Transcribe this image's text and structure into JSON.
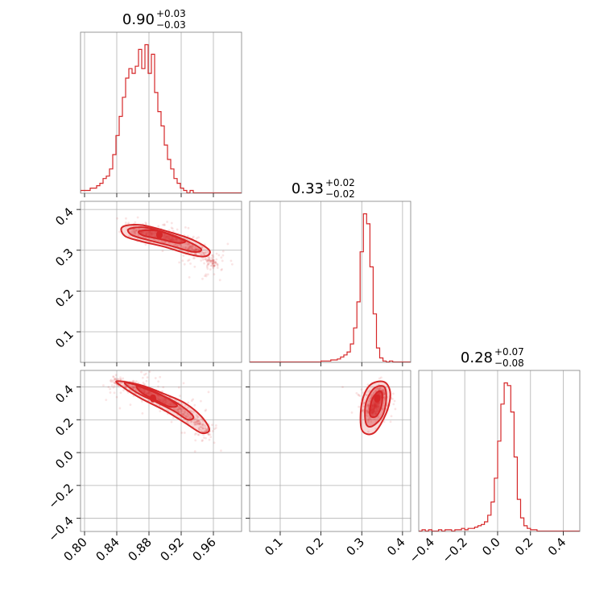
{
  "chart_data": {
    "type": "corner",
    "color": "#d62728",
    "parameters": [
      {
        "median": 0.9,
        "plus": 0.03,
        "minus": 0.03,
        "range": [
          0.795,
          0.995
        ],
        "ticks": [
          0.8,
          0.84,
          0.88,
          0.92,
          0.96
        ],
        "tick_labels": [
          "0.80",
          "0.84",
          "0.88",
          "0.92",
          "0.96"
        ]
      },
      {
        "median": 0.33,
        "plus": 0.02,
        "minus": 0.02,
        "range": [
          0.025,
          0.42
        ],
        "ticks": [
          0.1,
          0.2,
          0.3,
          0.4
        ],
        "tick_labels": [
          "0.1",
          "0.2",
          "0.3",
          "0.4"
        ]
      },
      {
        "median": 0.28,
        "plus": 0.07,
        "minus": 0.08,
        "range": [
          -0.48,
          0.5
        ],
        "ticks": [
          -0.4,
          -0.2,
          0.0,
          0.2,
          0.4
        ],
        "tick_labels": [
          "−0.4",
          "−0.2",
          "0.0",
          "0.2",
          "0.4"
        ]
      }
    ],
    "titles": [
      {
        "main": "0.90",
        "sup": "+0.03",
        "sub": "−0.03"
      },
      {
        "main": "0.33",
        "sup": "+0.02",
        "sub": "−0.02"
      },
      {
        "main": "0.28",
        "sup": "+0.07",
        "sub": "−0.08"
      }
    ],
    "y_tick_labels_row1": [
      "0.1",
      "0.2",
      "0.3",
      "0.4"
    ],
    "y_ticks_row1": [
      0.1,
      0.2,
      0.3,
      0.4
    ],
    "y_tick_labels_row2": [
      "−0.4",
      "−0.2",
      "0.0",
      "0.2",
      "0.4"
    ],
    "y_ticks_row2": [
      -0.4,
      -0.2,
      0.0,
      0.2,
      0.4
    ],
    "histograms": [
      {
        "param": 0,
        "edges_start": 0.795,
        "bin_width": 0.004,
        "counts": [
          1,
          1,
          1,
          2,
          2,
          3,
          4,
          6,
          7,
          10,
          16,
          24,
          32,
          40,
          48,
          52,
          50,
          53,
          60,
          52,
          62,
          50,
          58,
          42,
          34,
          28,
          20,
          14,
          10,
          6,
          4,
          2,
          1,
          0,
          1
        ]
      },
      {
        "param": 1,
        "edges_start": 0.2,
        "bin_width": 0.008,
        "counts": [
          1,
          1,
          1,
          2,
          2,
          3,
          5,
          7,
          10,
          18,
          34,
          60,
          110,
          148,
          138,
          95,
          48,
          14,
          4,
          1,
          0,
          1
        ]
      },
      {
        "param": 2,
        "edges_start": -0.48,
        "bin_width": 0.02,
        "counts": [
          0,
          1,
          0,
          1,
          0,
          0,
          1,
          0,
          1,
          1,
          0,
          1,
          1,
          2,
          1,
          2,
          2,
          3,
          4,
          5,
          7,
          12,
          22,
          40,
          68,
          96,
          112,
          110,
          90,
          56,
          24,
          10,
          4,
          2,
          1,
          1,
          0,
          0,
          0
        ]
      }
    ],
    "scatter_2d": [
      {
        "x_param": 0,
        "y_param": 1,
        "core": [
          [
            0.86,
            0.352
          ],
          [
            0.87,
            0.347
          ],
          [
            0.88,
            0.343
          ],
          [
            0.89,
            0.338
          ],
          [
            0.9,
            0.332
          ],
          [
            0.91,
            0.326
          ],
          [
            0.92,
            0.318
          ],
          [
            0.93,
            0.308
          ],
          [
            0.94,
            0.296
          ],
          [
            0.95,
            0.282
          ],
          [
            0.96,
            0.268
          ]
        ],
        "contour_levels": [
          [
            [
              0.847,
              0.357
            ],
            [
              0.87,
              0.362
            ],
            [
              0.905,
              0.345
            ],
            [
              0.935,
              0.325
            ],
            [
              0.955,
              0.3
            ],
            [
              0.95,
              0.285
            ],
            [
              0.93,
              0.29
            ],
            [
              0.9,
              0.308
            ],
            [
              0.87,
              0.322
            ],
            [
              0.85,
              0.335
            ]
          ],
          [
            [
              0.855,
              0.352
            ],
            [
              0.875,
              0.356
            ],
            [
              0.905,
              0.34
            ],
            [
              0.93,
              0.32
            ],
            [
              0.945,
              0.302
            ],
            [
              0.935,
              0.296
            ],
            [
              0.905,
              0.312
            ],
            [
              0.875,
              0.327
            ],
            [
              0.858,
              0.338
            ]
          ],
          [
            [
              0.868,
              0.347
            ],
            [
              0.89,
              0.348
            ],
            [
              0.91,
              0.335
            ],
            [
              0.925,
              0.322
            ],
            [
              0.915,
              0.318
            ],
            [
              0.895,
              0.327
            ],
            [
              0.873,
              0.336
            ]
          ]
        ],
        "peak": [
          0.893,
          0.338
        ]
      },
      {
        "x_param": 0,
        "y_param": 2,
        "core": [
          [
            0.84,
            0.43
          ],
          [
            0.85,
            0.415
          ],
          [
            0.86,
            0.4
          ],
          [
            0.87,
            0.385
          ],
          [
            0.88,
            0.36
          ],
          [
            0.89,
            0.34
          ],
          [
            0.9,
            0.315
          ],
          [
            0.91,
            0.29
          ],
          [
            0.92,
            0.26
          ],
          [
            0.93,
            0.225
          ],
          [
            0.94,
            0.185
          ],
          [
            0.95,
            0.13
          ]
        ],
        "contour_levels": [
          [
            [
              0.84,
              0.435
            ],
            [
              0.87,
              0.41
            ],
            [
              0.9,
              0.355
            ],
            [
              0.925,
              0.3
            ],
            [
              0.945,
              0.22
            ],
            [
              0.955,
              0.14
            ],
            [
              0.945,
              0.12
            ],
            [
              0.925,
              0.18
            ],
            [
              0.9,
              0.255
            ],
            [
              0.87,
              0.33
            ],
            [
              0.85,
              0.39
            ]
          ],
          [
            [
              0.85,
              0.425
            ],
            [
              0.875,
              0.395
            ],
            [
              0.9,
              0.34
            ],
            [
              0.92,
              0.285
            ],
            [
              0.935,
              0.22
            ],
            [
              0.928,
              0.2
            ],
            [
              0.912,
              0.25
            ],
            [
              0.89,
              0.305
            ],
            [
              0.865,
              0.365
            ]
          ],
          [
            [
              0.865,
              0.405
            ],
            [
              0.885,
              0.37
            ],
            [
              0.905,
              0.325
            ],
            [
              0.915,
              0.285
            ],
            [
              0.905,
              0.28
            ],
            [
              0.89,
              0.315
            ],
            [
              0.872,
              0.36
            ]
          ]
        ],
        "peak": [
          0.885,
          0.33
        ]
      },
      {
        "x_param": 1,
        "y_param": 2,
        "core": [
          [
            0.325,
            0.25
          ],
          [
            0.33,
            0.28
          ],
          [
            0.335,
            0.31
          ],
          [
            0.34,
            0.34
          ],
          [
            0.345,
            0.36
          ]
        ],
        "contour_levels": [
          [
            [
              0.3,
              0.14
            ],
            [
              0.3,
              0.3
            ],
            [
              0.32,
              0.41
            ],
            [
              0.355,
              0.43
            ],
            [
              0.37,
              0.36
            ],
            [
              0.36,
              0.24
            ],
            [
              0.33,
              0.12
            ]
          ],
          [
            [
              0.31,
              0.18
            ],
            [
              0.31,
              0.3
            ],
            [
              0.33,
              0.39
            ],
            [
              0.355,
              0.4
            ],
            [
              0.36,
              0.32
            ],
            [
              0.35,
              0.22
            ],
            [
              0.325,
              0.16
            ]
          ],
          [
            [
              0.32,
              0.23
            ],
            [
              0.325,
              0.32
            ],
            [
              0.34,
              0.37
            ],
            [
              0.35,
              0.36
            ],
            [
              0.348,
              0.28
            ],
            [
              0.335,
              0.22
            ]
          ]
        ],
        "peak": [
          0.338,
          0.33
        ]
      }
    ],
    "grid": true
  }
}
